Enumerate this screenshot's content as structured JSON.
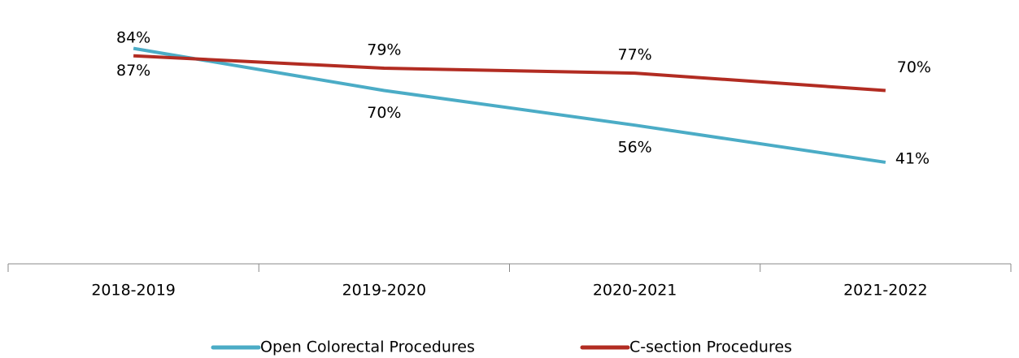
{
  "chart_data": {
    "type": "line",
    "categories": [
      "2018-2019",
      "2019-2020",
      "2020-2021",
      "2021-2022"
    ],
    "series": [
      {
        "name": "Open Colorectal Procedures",
        "color": "#4bacc6",
        "values": [
          87,
          70,
          56,
          41
        ],
        "value_labels": [
          "87%",
          "70%",
          "56%",
          "41%"
        ]
      },
      {
        "name": "C-section Procedures",
        "color": "#b22c22",
        "values": [
          84,
          79,
          77,
          70
        ],
        "value_labels": [
          "84%",
          "79%",
          "77%",
          "70%"
        ]
      }
    ],
    "ylim": [
      0,
      100
    ],
    "legend": "bottom"
  }
}
